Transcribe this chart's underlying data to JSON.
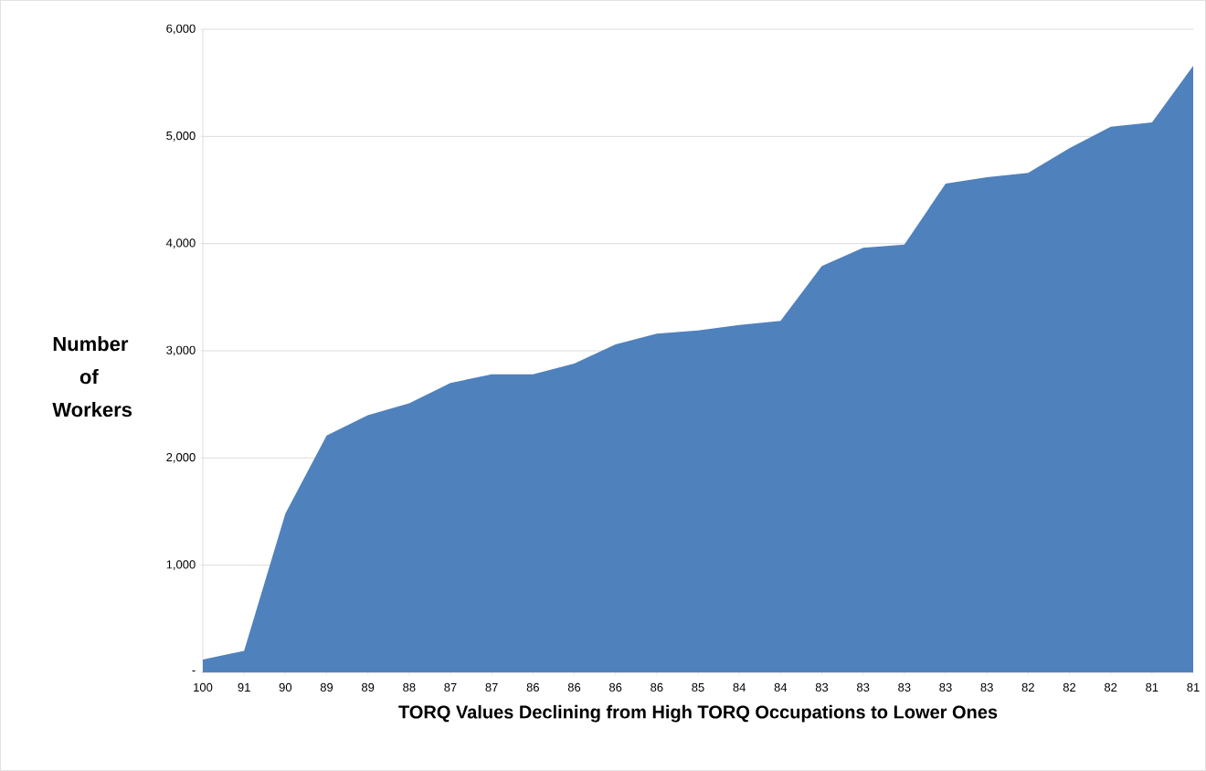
{
  "chart_data": {
    "type": "area",
    "xlabel": "TORQ Values Declining from High TORQ Occupations to Lower Ones",
    "ylabel": "Number of Workers",
    "categories": [
      "100",
      "91",
      "90",
      "89",
      "89",
      "88",
      "87",
      "87",
      "86",
      "86",
      "86",
      "86",
      "85",
      "84",
      "84",
      "83",
      "83",
      "83",
      "83",
      "83",
      "82",
      "82",
      "82",
      "81",
      "81"
    ],
    "values": [
      120,
      200,
      1480,
      2210,
      2400,
      2510,
      2700,
      2780,
      2780,
      2880,
      3060,
      3160,
      3190,
      3240,
      3280,
      3790,
      3960,
      3990,
      4560,
      4620,
      4660,
      4890,
      5090,
      5130,
      5660
    ],
    "color": "#4f81bd",
    "ylim": [
      0,
      6000
    ],
    "yticks": [
      {
        "value": 0,
        "label": "-"
      },
      {
        "value": 1000,
        "label": "1,000"
      },
      {
        "value": 2000,
        "label": "2,000"
      },
      {
        "value": 3000,
        "label": "3,000"
      },
      {
        "value": 4000,
        "label": "4,000"
      },
      {
        "value": 5000,
        "label": "5,000"
      },
      {
        "value": 6000,
        "label": "6,000"
      }
    ],
    "grid": "y"
  }
}
